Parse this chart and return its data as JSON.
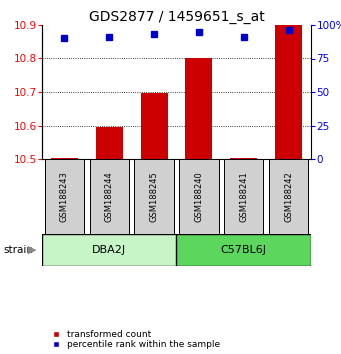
{
  "title": "GDS2877 / 1459651_s_at",
  "samples": [
    "GSM188243",
    "GSM188244",
    "GSM188245",
    "GSM188240",
    "GSM188241",
    "GSM188242"
  ],
  "group_names": [
    "DBA2J",
    "C57BL6J"
  ],
  "group_colors": [
    "#c8f5c8",
    "#5cd65c"
  ],
  "bar_values": [
    10.502,
    10.597,
    10.698,
    10.8,
    10.503,
    10.9
  ],
  "percentile_values": [
    90,
    91,
    93,
    95,
    91,
    96
  ],
  "ylim": [
    10.5,
    10.9
  ],
  "yticks": [
    10.5,
    10.6,
    10.7,
    10.8,
    10.9
  ],
  "right_ylim": [
    0,
    100
  ],
  "right_yticks": [
    0,
    25,
    50,
    75,
    100
  ],
  "bar_color": "#cc0000",
  "dot_color": "#0000cc",
  "bar_bottom": 10.5,
  "title_fontsize": 10,
  "tick_fontsize": 7.5,
  "sample_box_color": "#d0d0d0",
  "grid_color": "#000000"
}
